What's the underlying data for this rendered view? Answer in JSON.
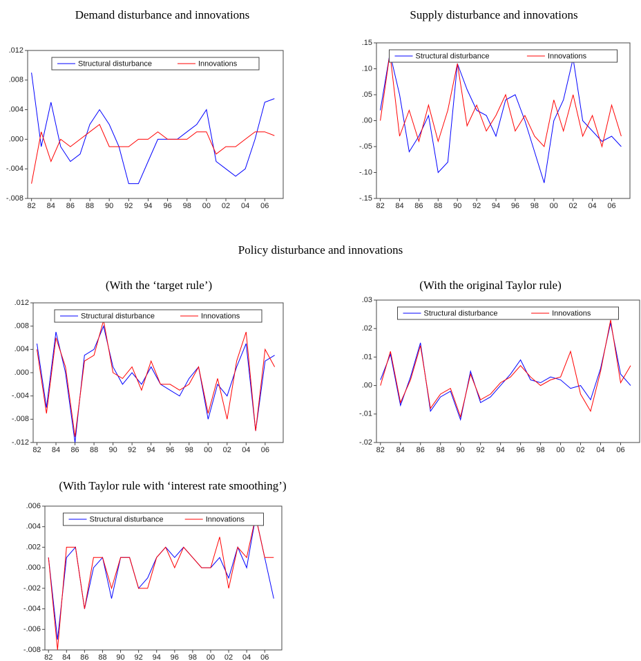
{
  "heading": "Policy disturbance and innovations",
  "chart_data": [
    {
      "type": "line",
      "title": "Demand disturbance and innovations",
      "legend": "top",
      "x": [
        1982,
        1983,
        1984,
        1985,
        1986,
        1987,
        1988,
        1989,
        1990,
        1991,
        1992,
        1993,
        1994,
        1995,
        1996,
        1997,
        1998,
        1999,
        2000,
        2001,
        2002,
        2003,
        2004,
        2005,
        2006,
        2007
      ],
      "xlim": [
        1981.6,
        2007.9
      ],
      "xticks": [
        {
          "value": 1982,
          "label": "82"
        },
        {
          "value": 1984,
          "label": "84"
        },
        {
          "value": 1986,
          "label": "86"
        },
        {
          "value": 1988,
          "label": "88"
        },
        {
          "value": 1990,
          "label": "90"
        },
        {
          "value": 1992,
          "label": "92"
        },
        {
          "value": 1994,
          "label": "94"
        },
        {
          "value": 1996,
          "label": "96"
        },
        {
          "value": 1998,
          "label": "98"
        },
        {
          "value": 2000,
          "label": "00"
        },
        {
          "value": 2002,
          "label": "02"
        },
        {
          "value": 2004,
          "label": "04"
        },
        {
          "value": 2006,
          "label": "06"
        }
      ],
      "ylim": [
        -0.008,
        0.012
      ],
      "yticks": [
        {
          "value": -0.008,
          "label": "-.008"
        },
        {
          "value": -0.004,
          "label": "-.004"
        },
        {
          "value": 0,
          "label": ".000"
        },
        {
          "value": 0.004,
          "label": ".004"
        },
        {
          "value": 0.008,
          "label": ".008"
        },
        {
          "value": 0.012,
          "label": ".012"
        }
      ],
      "series": [
        {
          "name": "Structural disturbance",
          "color": "#0000ff",
          "values": [
            0.009,
            -0.001,
            0.005,
            -0.001,
            -0.003,
            -0.002,
            0.002,
            0.004,
            0.002,
            -0.001,
            -0.006,
            -0.006,
            -0.003,
            0.0,
            0.0,
            0.0,
            0.001,
            0.002,
            0.004,
            -0.003,
            -0.004,
            -0.005,
            -0.004,
            0.0,
            0.005,
            0.0055
          ]
        },
        {
          "name": "Innovations",
          "color": "#ff0000",
          "values": [
            -0.006,
            0.001,
            -0.003,
            0.0,
            -0.001,
            0.0,
            0.001,
            0.002,
            -0.001,
            -0.001,
            -0.001,
            0.0,
            0.0,
            0.001,
            0.0,
            0.0,
            0.0,
            0.001,
            0.001,
            -0.002,
            -0.001,
            -0.001,
            0.0,
            0.001,
            0.001,
            0.0005
          ]
        }
      ]
    },
    {
      "type": "line",
      "title": "Supply disturbance and innovations",
      "legend": "top",
      "x": [
        1982,
        1983,
        1984,
        1985,
        1986,
        1987,
        1988,
        1989,
        1990,
        1991,
        1992,
        1993,
        1994,
        1995,
        1996,
        1997,
        1998,
        1999,
        2000,
        2001,
        2002,
        2003,
        2004,
        2005,
        2006,
        2007
      ],
      "xlim": [
        1981.6,
        2007.9
      ],
      "xticks": [
        {
          "value": 1982,
          "label": "82"
        },
        {
          "value": 1984,
          "label": "84"
        },
        {
          "value": 1986,
          "label": "86"
        },
        {
          "value": 1988,
          "label": "88"
        },
        {
          "value": 1990,
          "label": "90"
        },
        {
          "value": 1992,
          "label": "92"
        },
        {
          "value": 1994,
          "label": "94"
        },
        {
          "value": 1996,
          "label": "96"
        },
        {
          "value": 1998,
          "label": "98"
        },
        {
          "value": 2000,
          "label": "00"
        },
        {
          "value": 2002,
          "label": "02"
        },
        {
          "value": 2004,
          "label": "04"
        },
        {
          "value": 2006,
          "label": "06"
        }
      ],
      "ylim": [
        -0.15,
        0.15
      ],
      "yticks": [
        {
          "value": -0.15,
          "label": "-.15"
        },
        {
          "value": -0.1,
          "label": "-.10"
        },
        {
          "value": -0.05,
          "label": "-.05"
        },
        {
          "value": 0,
          "label": ".00"
        },
        {
          "value": 0.05,
          "label": ".05"
        },
        {
          "value": 0.1,
          "label": ".10"
        },
        {
          "value": 0.15,
          "label": ".15"
        }
      ],
      "series": [
        {
          "name": "Structural disturbance",
          "color": "#0000ff",
          "values": [
            0.02,
            0.13,
            0.05,
            -0.06,
            -0.03,
            0.01,
            -0.1,
            -0.08,
            0.11,
            0.06,
            0.02,
            0.01,
            -0.03,
            0.04,
            0.05,
            0.0,
            -0.06,
            -0.12,
            0.0,
            0.04,
            0.12,
            0.0,
            -0.02,
            -0.04,
            -0.03,
            -0.05
          ]
        },
        {
          "name": "Innovations",
          "color": "#ff0000",
          "values": [
            0.0,
            0.13,
            -0.03,
            0.02,
            -0.04,
            0.03,
            -0.04,
            0.02,
            0.11,
            -0.01,
            0.03,
            -0.02,
            0.01,
            0.05,
            -0.02,
            0.01,
            -0.03,
            -0.05,
            0.04,
            -0.02,
            0.05,
            -0.03,
            0.01,
            -0.05,
            0.03,
            -0.03
          ]
        }
      ]
    },
    {
      "type": "line",
      "title": "(With the ‘target rule’)",
      "legend": "top",
      "x": [
        1982,
        1983,
        1984,
        1985,
        1986,
        1987,
        1988,
        1989,
        1990,
        1991,
        1992,
        1993,
        1994,
        1995,
        1996,
        1997,
        1998,
        1999,
        2000,
        2001,
        2002,
        2003,
        2004,
        2005,
        2006,
        2007
      ],
      "xlim": [
        1981.6,
        2007.9
      ],
      "xticks": [
        {
          "value": 1982,
          "label": "82"
        },
        {
          "value": 1984,
          "label": "84"
        },
        {
          "value": 1986,
          "label": "86"
        },
        {
          "value": 1988,
          "label": "88"
        },
        {
          "value": 1990,
          "label": "90"
        },
        {
          "value": 1992,
          "label": "92"
        },
        {
          "value": 1994,
          "label": "94"
        },
        {
          "value": 1996,
          "label": "96"
        },
        {
          "value": 1998,
          "label": "98"
        },
        {
          "value": 2000,
          "label": "00"
        },
        {
          "value": 2002,
          "label": "02"
        },
        {
          "value": 2004,
          "label": "04"
        },
        {
          "value": 2006,
          "label": "06"
        }
      ],
      "ylim": [
        -0.012,
        0.012
      ],
      "yticks": [
        {
          "value": -0.012,
          "label": "-.012"
        },
        {
          "value": -0.008,
          "label": "-.008"
        },
        {
          "value": -0.004,
          "label": "-.004"
        },
        {
          "value": 0,
          "label": ".000"
        },
        {
          "value": 0.004,
          "label": ".004"
        },
        {
          "value": 0.008,
          "label": ".008"
        },
        {
          "value": 0.012,
          "label": ".012"
        }
      ],
      "series": [
        {
          "name": "Structural disturbance",
          "color": "#0000ff",
          "values": [
            0.005,
            -0.006,
            0.007,
            0.0,
            -0.012,
            0.003,
            0.004,
            0.008,
            0.001,
            -0.002,
            0.0,
            -0.002,
            0.001,
            -0.002,
            -0.003,
            -0.004,
            -0.001,
            0.001,
            -0.008,
            -0.002,
            -0.004,
            0.001,
            0.005,
            -0.01,
            0.002,
            0.003
          ]
        },
        {
          "name": "Innovations",
          "color": "#ff0000",
          "values": [
            0.004,
            -0.007,
            0.006,
            0.001,
            -0.011,
            0.002,
            0.003,
            0.009,
            0.0,
            -0.001,
            0.001,
            -0.003,
            0.002,
            -0.002,
            -0.002,
            -0.003,
            -0.002,
            0.001,
            -0.007,
            -0.001,
            -0.008,
            0.002,
            0.007,
            -0.01,
            0.004,
            0.001
          ]
        }
      ]
    },
    {
      "type": "line",
      "title": "(With the original Taylor rule)",
      "legend": "top",
      "x": [
        1982,
        1983,
        1984,
        1985,
        1986,
        1987,
        1988,
        1989,
        1990,
        1991,
        1992,
        1993,
        1994,
        1995,
        1996,
        1997,
        1998,
        1999,
        2000,
        2001,
        2002,
        2003,
        2004,
        2005,
        2006,
        2007
      ],
      "xlim": [
        1981.6,
        2007.9
      ],
      "xticks": [
        {
          "value": 1982,
          "label": "82"
        },
        {
          "value": 1984,
          "label": "84"
        },
        {
          "value": 1986,
          "label": "86"
        },
        {
          "value": 1988,
          "label": "88"
        },
        {
          "value": 1990,
          "label": "90"
        },
        {
          "value": 1992,
          "label": "92"
        },
        {
          "value": 1994,
          "label": "94"
        },
        {
          "value": 1996,
          "label": "96"
        },
        {
          "value": 1998,
          "label": "98"
        },
        {
          "value": 2000,
          "label": "00"
        },
        {
          "value": 2002,
          "label": "02"
        },
        {
          "value": 2004,
          "label": "04"
        },
        {
          "value": 2006,
          "label": "06"
        }
      ],
      "ylim": [
        -0.02,
        0.03
      ],
      "yticks": [
        {
          "value": -0.02,
          "label": "-.02"
        },
        {
          "value": -0.01,
          "label": "-.01"
        },
        {
          "value": 0,
          "label": ".00"
        },
        {
          "value": 0.01,
          "label": ".01"
        },
        {
          "value": 0.02,
          "label": ".02"
        },
        {
          "value": 0.03,
          "label": ".03"
        }
      ],
      "series": [
        {
          "name": "Structural disturbance",
          "color": "#0000ff",
          "values": [
            0.002,
            0.011,
            -0.007,
            0.003,
            0.015,
            -0.009,
            -0.004,
            -0.002,
            -0.012,
            0.005,
            -0.006,
            -0.004,
            0.0,
            0.004,
            0.009,
            0.002,
            0.001,
            0.003,
            0.002,
            -0.001,
            0.0,
            -0.005,
            0.006,
            0.022,
            0.004,
            0.0
          ]
        },
        {
          "name": "Innovations",
          "color": "#ff0000",
          "values": [
            0.0,
            0.012,
            -0.006,
            0.002,
            0.014,
            -0.008,
            -0.003,
            -0.001,
            -0.011,
            0.004,
            -0.005,
            -0.003,
            0.001,
            0.003,
            0.007,
            0.003,
            0.0,
            0.002,
            0.003,
            0.012,
            -0.003,
            -0.009,
            0.005,
            0.023,
            0.001,
            0.007
          ]
        }
      ]
    },
    {
      "type": "line",
      "title": "(With Taylor rule with ‘interest rate smoothing’)",
      "legend": "top",
      "x": [
        1982,
        1983,
        1984,
        1985,
        1986,
        1987,
        1988,
        1989,
        1990,
        1991,
        1992,
        1993,
        1994,
        1995,
        1996,
        1997,
        1998,
        1999,
        2000,
        2001,
        2002,
        2003,
        2004,
        2005,
        2006,
        2007
      ],
      "xlim": [
        1981.6,
        2007.9
      ],
      "xticks": [
        {
          "value": 1982,
          "label": "82"
        },
        {
          "value": 1984,
          "label": "84"
        },
        {
          "value": 1986,
          "label": "86"
        },
        {
          "value": 1988,
          "label": "88"
        },
        {
          "value": 1990,
          "label": "90"
        },
        {
          "value": 1992,
          "label": "92"
        },
        {
          "value": 1994,
          "label": "94"
        },
        {
          "value": 1996,
          "label": "96"
        },
        {
          "value": 1998,
          "label": "98"
        },
        {
          "value": 2000,
          "label": "00"
        },
        {
          "value": 2002,
          "label": "02"
        },
        {
          "value": 2004,
          "label": "04"
        },
        {
          "value": 2006,
          "label": "06"
        }
      ],
      "ylim": [
        -0.008,
        0.006
      ],
      "yticks": [
        {
          "value": -0.008,
          "label": "-.008"
        },
        {
          "value": -0.006,
          "label": "-.006"
        },
        {
          "value": -0.004,
          "label": "-.004"
        },
        {
          "value": -0.002,
          "label": "-.002"
        },
        {
          "value": 0,
          "label": ".000"
        },
        {
          "value": 0.002,
          "label": ".002"
        },
        {
          "value": 0.004,
          "label": ".004"
        },
        {
          "value": 0.006,
          "label": ".006"
        }
      ],
      "series": [
        {
          "name": "Structural disturbance",
          "color": "#0000ff",
          "values": [
            0.001,
            -0.007,
            0.001,
            0.002,
            -0.004,
            0.0,
            0.001,
            -0.003,
            0.001,
            0.001,
            -0.002,
            -0.001,
            0.001,
            0.002,
            0.001,
            0.002,
            0.001,
            0.0,
            0.0,
            0.001,
            -0.001,
            0.002,
            0.0,
            0.005,
            0.001,
            -0.003
          ]
        },
        {
          "name": "Innovations",
          "color": "#ff0000",
          "values": [
            0.001,
            -0.008,
            0.002,
            0.002,
            -0.004,
            0.001,
            0.001,
            -0.002,
            0.001,
            0.001,
            -0.002,
            -0.002,
            0.001,
            0.002,
            0.0,
            0.002,
            0.001,
            0.0,
            0.0,
            0.003,
            -0.002,
            0.002,
            0.001,
            0.005,
            0.001,
            0.001
          ]
        }
      ]
    }
  ]
}
